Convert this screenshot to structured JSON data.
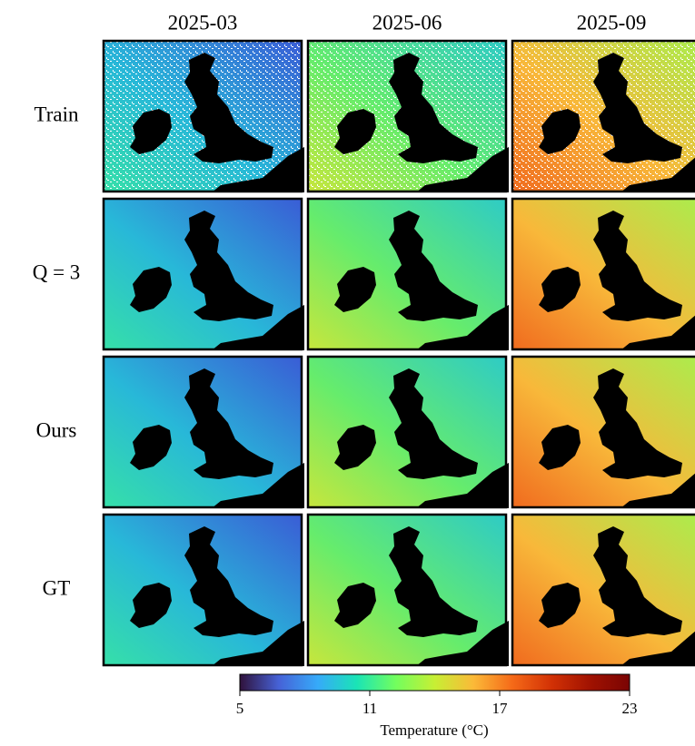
{
  "chart_data": {
    "type": "map-grid",
    "columns": [
      "2025-03",
      "2025-06",
      "2025-09"
    ],
    "rows": [
      "Train",
      "Q = 3",
      "Ours",
      "GT"
    ],
    "colorbar": {
      "label": "Temperature (°C)",
      "lim": [
        5,
        23
      ],
      "ticks": [
        5,
        11,
        17,
        23
      ],
      "colormap": "turbo"
    }
  }
}
